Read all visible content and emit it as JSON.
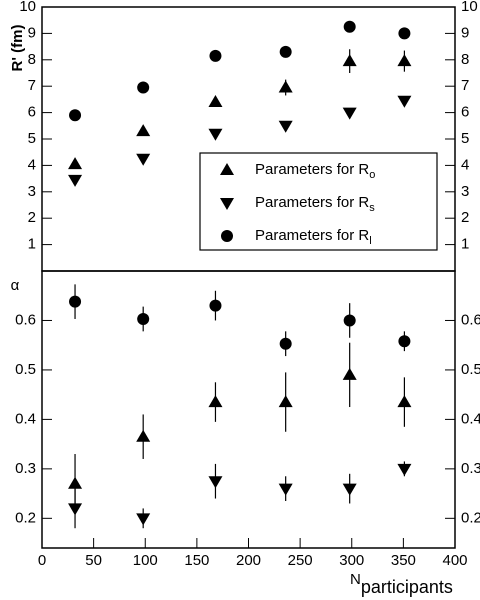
{
  "chart_data": [
    {
      "type": "scatter",
      "ylabel": "R' (fm)",
      "xlim": [
        0,
        400
      ],
      "ylim": [
        0,
        10
      ],
      "yticks": [
        1,
        2,
        3,
        4,
        5,
        6,
        7,
        8,
        9,
        10
      ],
      "series": [
        {
          "name": "Parameters for R",
          "name_sub": "o",
          "marker": "triangle-up",
          "color": "#000000",
          "x": [
            32,
            98,
            168,
            236,
            298,
            351
          ],
          "values": [
            4.05,
            5.3,
            6.4,
            6.95,
            7.95,
            7.95
          ],
          "errors": [
            0.1,
            0.1,
            0.15,
            0.3,
            0.45,
            0.4
          ]
        },
        {
          "name": "Parameters for R",
          "name_sub": "s",
          "marker": "triangle-down",
          "color": "#000000",
          "x": [
            32,
            98,
            168,
            236,
            298,
            351
          ],
          "values": [
            3.45,
            4.25,
            5.2,
            5.5,
            6.0,
            6.45
          ],
          "errors": [
            0.05,
            0.05,
            0.05,
            0.05,
            0.05,
            0.05
          ]
        },
        {
          "name": "Parameters for R",
          "name_sub": "l",
          "marker": "circle",
          "color": "#000000",
          "x": [
            32,
            98,
            168,
            236,
            298,
            351
          ],
          "values": [
            5.9,
            6.95,
            8.15,
            8.3,
            9.25,
            9.0
          ],
          "errors": [
            0.05,
            0.05,
            0.05,
            0.05,
            0.05,
            0.05
          ]
        }
      ]
    },
    {
      "type": "scatter",
      "ylabel": "α",
      "xlabel": "N",
      "xlabel_sub": "participants",
      "xlim": [
        0,
        400
      ],
      "xticks": [
        0,
        50,
        100,
        150,
        200,
        250,
        300,
        350,
        400
      ],
      "ylim": [
        0.14,
        0.7
      ],
      "yticks": [
        0.2,
        0.3,
        0.4,
        0.5,
        0.6
      ],
      "series": [
        {
          "marker": "triangle-up",
          "color": "#000000",
          "x": [
            32,
            98,
            168,
            236,
            298,
            351
          ],
          "values": [
            0.27,
            0.365,
            0.435,
            0.435,
            0.49,
            0.435
          ],
          "errors": [
            0.06,
            0.045,
            0.04,
            0.06,
            0.065,
            0.05
          ]
        },
        {
          "marker": "triangle-down",
          "color": "#000000",
          "x": [
            32,
            98,
            168,
            236,
            298,
            351
          ],
          "values": [
            0.22,
            0.2,
            0.275,
            0.26,
            0.26,
            0.3
          ],
          "errors": [
            0.04,
            0.02,
            0.035,
            0.025,
            0.03,
            0.015
          ]
        },
        {
          "marker": "circle",
          "color": "#000000",
          "x": [
            32,
            98,
            168,
            236,
            298,
            351
          ],
          "values": [
            0.638,
            0.603,
            0.63,
            0.553,
            0.6,
            0.558
          ],
          "errors": [
            0.035,
            0.025,
            0.03,
            0.025,
            0.035,
            0.02
          ]
        }
      ]
    }
  ]
}
